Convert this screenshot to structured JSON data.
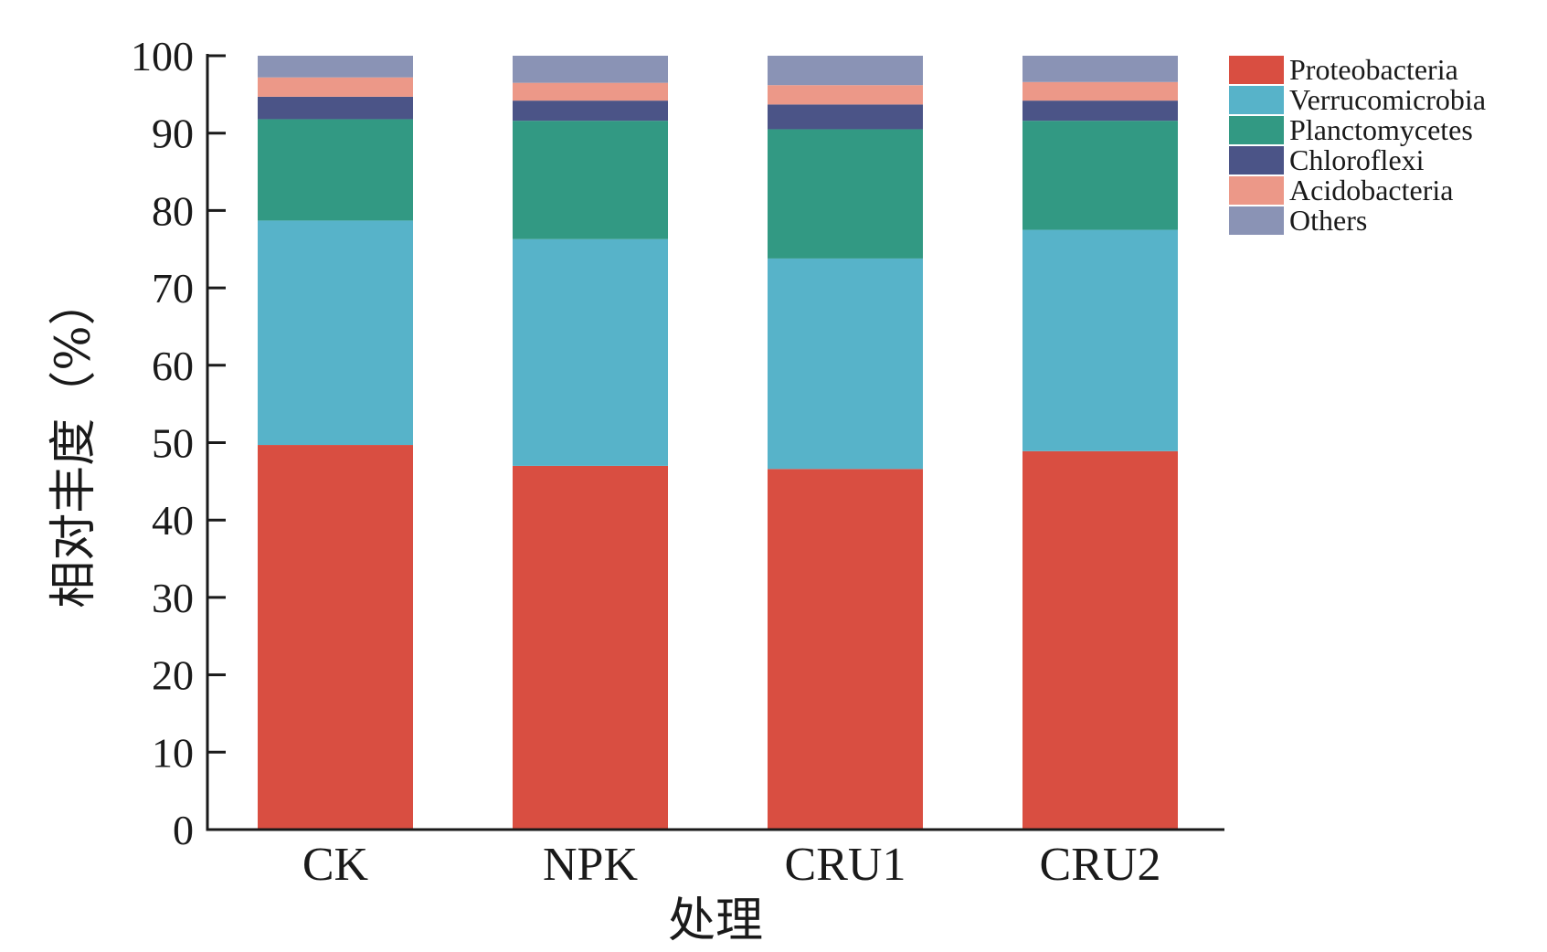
{
  "chart_data": {
    "type": "bar",
    "stacked": true,
    "xlabel": "处理",
    "ylabel": "相对丰度（%）",
    "ylim": [
      0,
      100
    ],
    "yticks": [
      "0",
      "10",
      "20",
      "30",
      "40",
      "50",
      "60",
      "70",
      "80",
      "90",
      "100"
    ],
    "categories": [
      "CK",
      "NPK",
      "CRU1",
      "CRU2"
    ],
    "legend_position": "top-right",
    "grid": false,
    "series": [
      {
        "name": "Proteobacteria",
        "color": "#d94e41",
        "values": [
          49.7,
          47.0,
          46.6,
          48.9
        ]
      },
      {
        "name": "Verrucomicrobia",
        "color": "#57b3c9",
        "values": [
          29.0,
          29.3,
          27.2,
          28.6
        ]
      },
      {
        "name": "Planctomycetes",
        "color": "#329983",
        "values": [
          13.1,
          15.3,
          16.7,
          14.1
        ]
      },
      {
        "name": "Chloroflexi",
        "color": "#4b5487",
        "values": [
          2.9,
          2.6,
          3.2,
          2.6
        ]
      },
      {
        "name": "Acidobacteria",
        "color": "#ec9888",
        "values": [
          2.5,
          2.3,
          2.5,
          2.4
        ]
      },
      {
        "name": "Others",
        "color": "#8a93b5",
        "values": [
          2.8,
          3.5,
          3.8,
          3.4
        ]
      }
    ]
  }
}
